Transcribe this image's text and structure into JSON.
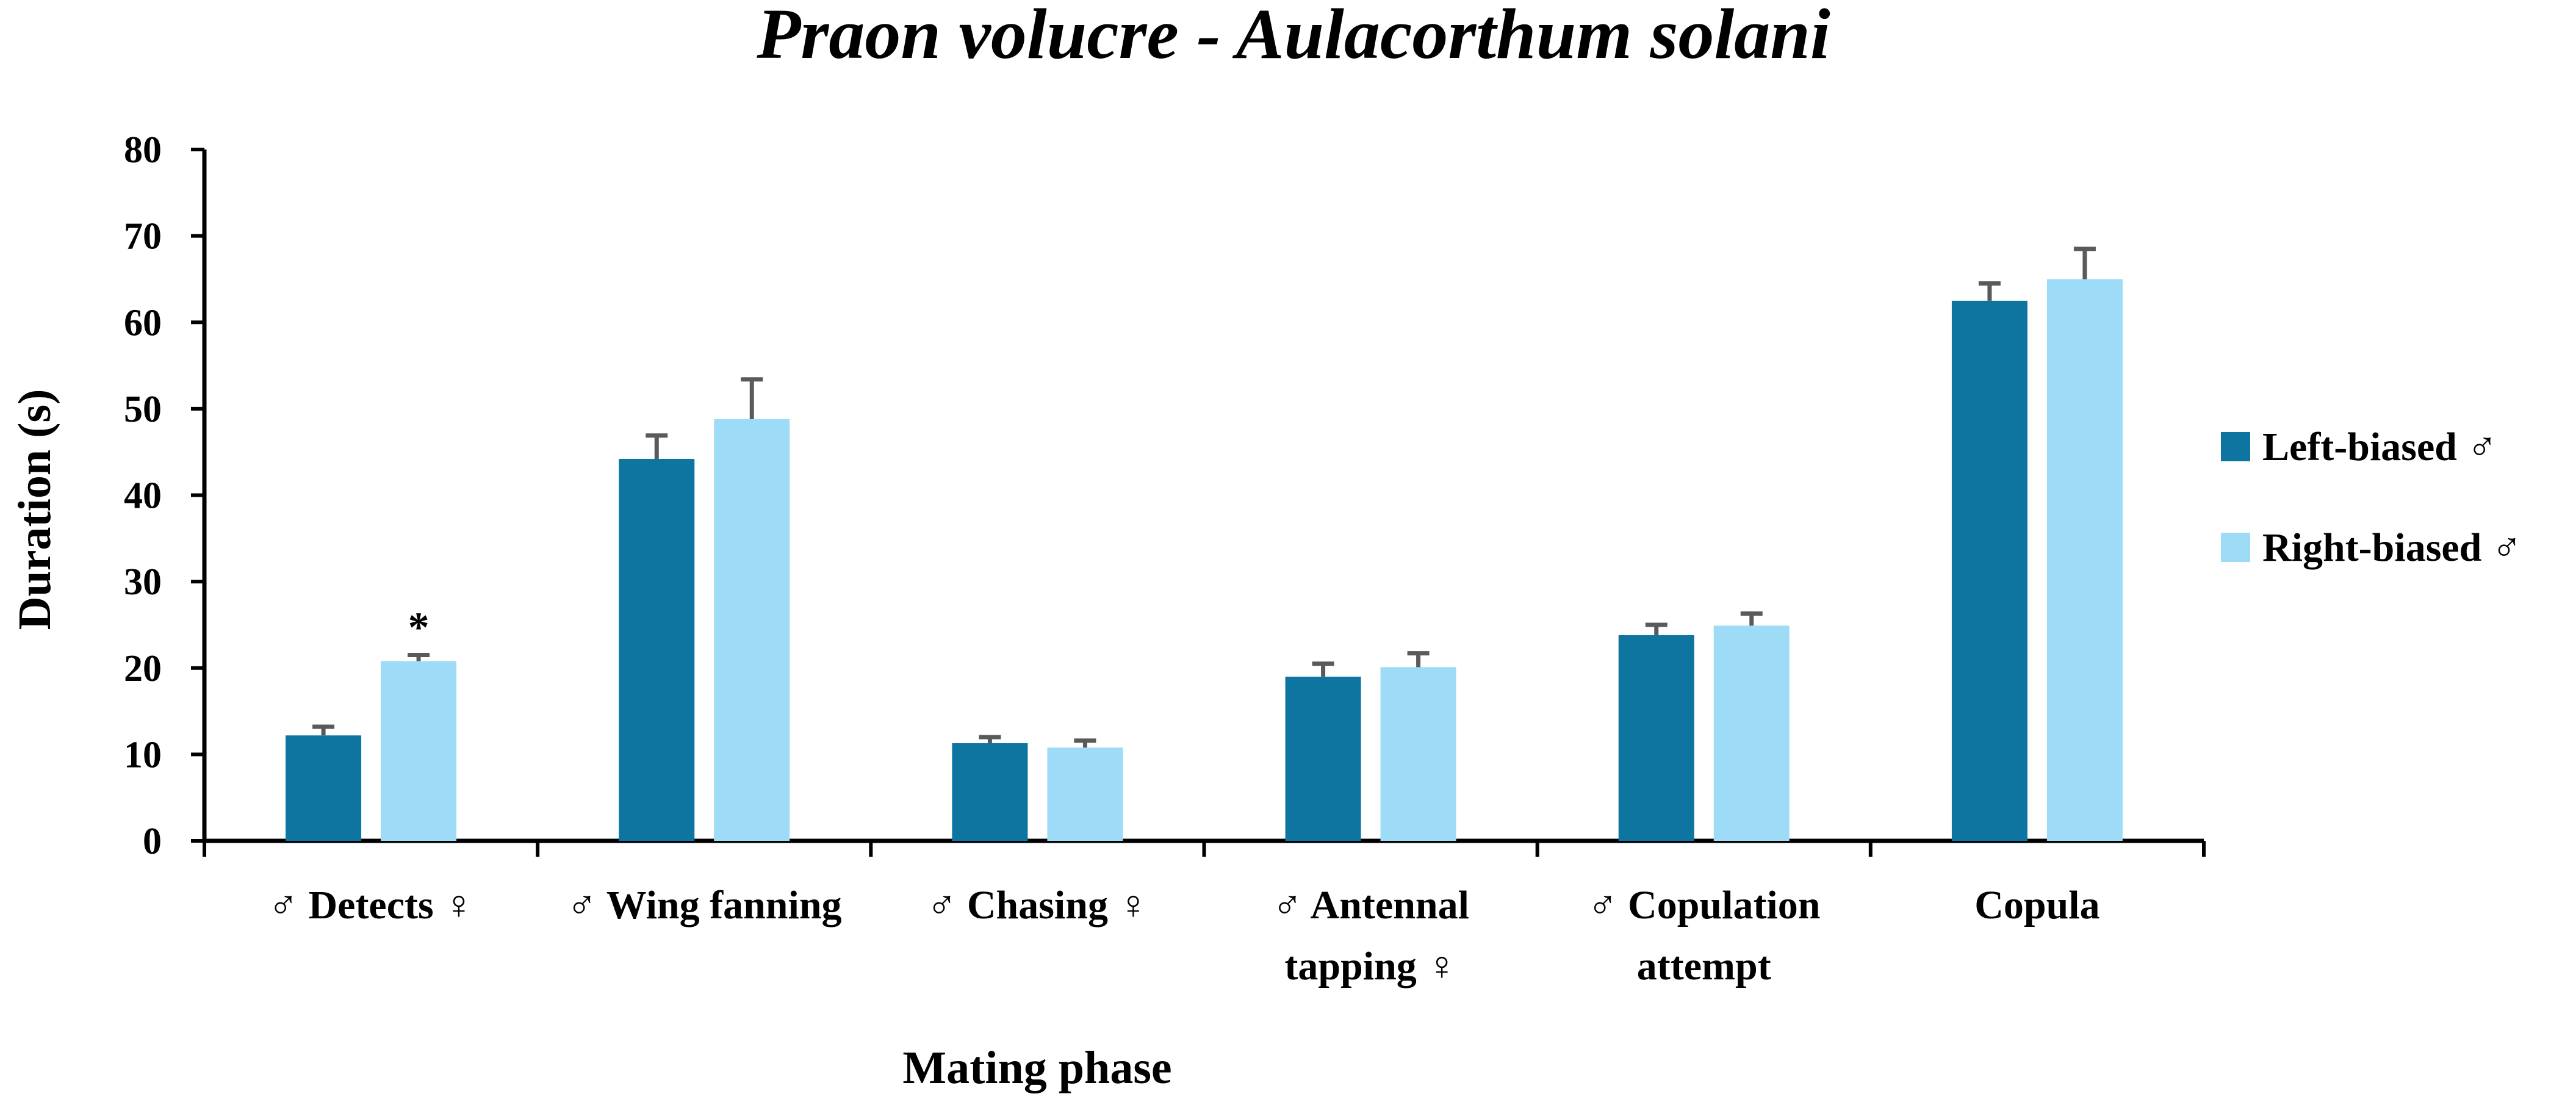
{
  "chart_data": {
    "type": "bar",
    "title": "Praon volucre - Aulacorthum solani",
    "xlabel": "Mating phase",
    "ylabel": "Duration (s)",
    "ylim": [
      0,
      80
    ],
    "yticks": [
      0,
      10,
      20,
      30,
      40,
      50,
      60,
      70,
      80
    ],
    "categories": [
      [
        "♂ Detects ♀"
      ],
      [
        "♂ Wing fanning"
      ],
      [
        "♂ Chasing ♀"
      ],
      [
        "♂ Antennal",
        "tapping ♀"
      ],
      [
        "♂ Copulation",
        "attempt"
      ],
      [
        "Copula"
      ]
    ],
    "series": [
      {
        "name": "Left-biased ♂",
        "color": "#0e74a0",
        "values": [
          12.2,
          44.2,
          11.3,
          19.0,
          23.8,
          62.5
        ],
        "errors": [
          1.0,
          2.7,
          0.7,
          1.5,
          1.2,
          2.0
        ]
      },
      {
        "name": "Right-biased ♂",
        "color": "#9edbf6",
        "values": [
          20.8,
          48.8,
          10.8,
          20.1,
          24.9,
          65.0
        ],
        "errors": [
          0.7,
          4.6,
          0.8,
          1.6,
          1.4,
          3.5
        ]
      }
    ],
    "annotations": [
      {
        "category_index": 0,
        "series_index": 1,
        "text": "*"
      }
    ],
    "legend_position": "right",
    "grid": false
  }
}
